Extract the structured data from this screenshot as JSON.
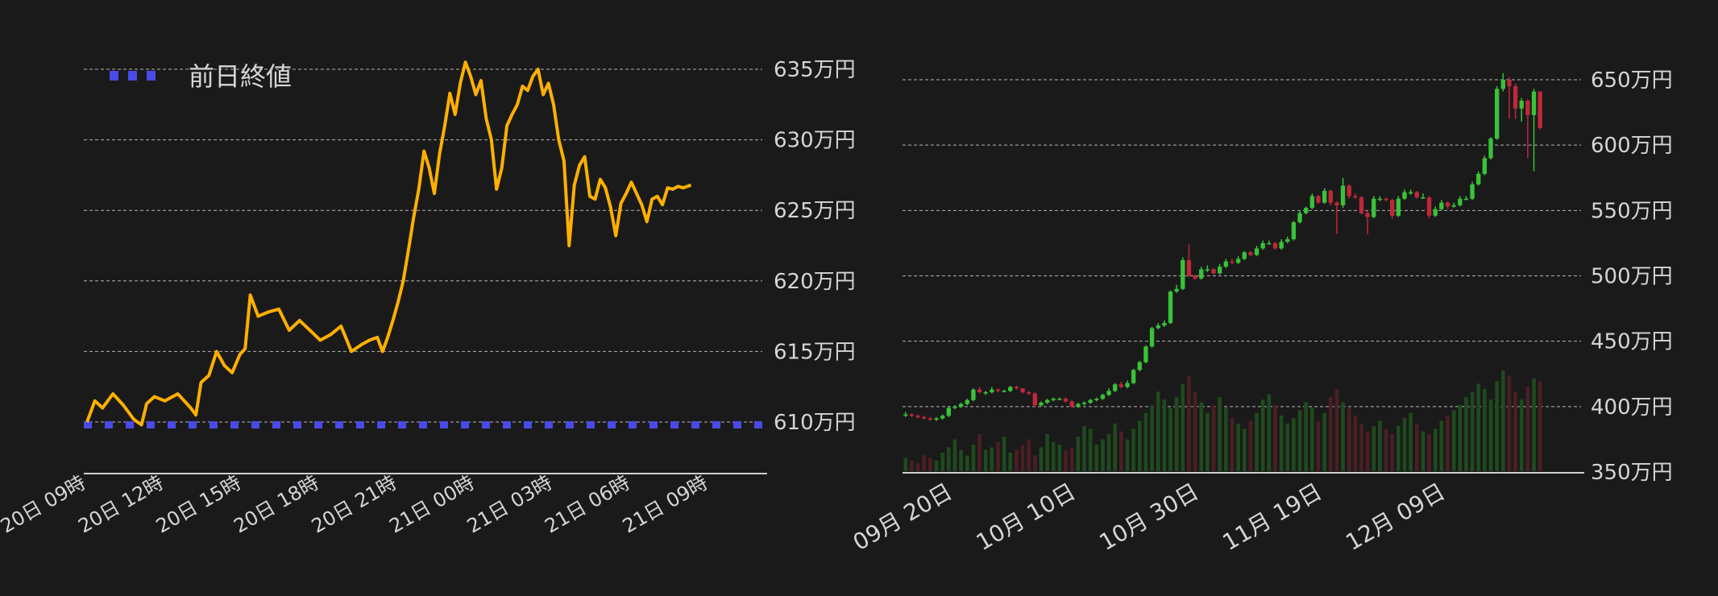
{
  "colors": {
    "background": "#1a1a1a",
    "intraday_line": "#ffb000",
    "prev_close": "#4a4ae6",
    "up": "#39c239",
    "down": "#c0283a",
    "volume_up": "#1f4a1f",
    "volume_down": "#4a1f24"
  },
  "chart_data": [
    {
      "type": "line",
      "legend": {
        "label": "前日終値",
        "placement": "top-left"
      },
      "yaxis": {
        "position": "right",
        "ylim": [
          6055000,
          6360000
        ],
        "ticks": [
          6100000,
          6150000,
          6200000,
          6250000,
          6300000,
          6350000
        ],
        "tick_labels": [
          "610万円",
          "615万円",
          "620万円",
          "625万円",
          "630万円",
          "635万円"
        ]
      },
      "xaxis": {
        "xlim": [
          0,
          26
        ],
        "ticks": [
          0,
          3,
          6,
          9,
          12,
          15,
          18,
          21,
          24
        ],
        "tick_labels": [
          "20日 09時",
          "20日 12時",
          "20日 15時",
          "20日 18時",
          "20日 21時",
          "21日 00時",
          "21日 03時",
          "21日 06時",
          "21日 09時"
        ]
      },
      "grid": true,
      "prev_close": 6098000,
      "series": [
        {
          "x": [
            0,
            0.3,
            0.6,
            1,
            1.4,
            1.8,
            2.1,
            2.3,
            2.6,
            3,
            3.5,
            4,
            4.2,
            4.4,
            4.7,
            5,
            5.3,
            5.6,
            5.9,
            6.1,
            6.3,
            6.6,
            7,
            7.4,
            7.8,
            8.2,
            8.6,
            9,
            9.4,
            9.8,
            10.2,
            10.6,
            10.9,
            11.2,
            11.4,
            11.6,
            11.8,
            12,
            12.2,
            12.4,
            12.6,
            12.8,
            13,
            13.2,
            13.4,
            13.6,
            13.8,
            14,
            14.2,
            14.4,
            14.6,
            14.8,
            15,
            15.2,
            15.4,
            15.6,
            15.8,
            16,
            16.2,
            16.4,
            16.6,
            16.8,
            17,
            17.2,
            17.4,
            17.6,
            17.8,
            18,
            18.2,
            18.4,
            18.6,
            18.8,
            19,
            19.2,
            19.4,
            19.6,
            19.8,
            20,
            20.2,
            20.4,
            20.6,
            20.8,
            21,
            21.2,
            21.4,
            21.6,
            21.8,
            22,
            22.2,
            22.4,
            22.6,
            22.8,
            23,
            23.3
          ],
          "y": [
            6100000,
            6115000,
            6110000,
            6120000,
            6112000,
            6102000,
            6098000,
            6113000,
            6118000,
            6115000,
            6120000,
            6110000,
            6105000,
            6128000,
            6133000,
            6150000,
            6140000,
            6135000,
            6148000,
            6152000,
            6190000,
            6175000,
            6178000,
            6180000,
            6165000,
            6172000,
            6165000,
            6158000,
            6162000,
            6168000,
            6150000,
            6155000,
            6158000,
            6160000,
            6150000,
            6160000,
            6172000,
            6185000,
            6200000,
            6222000,
            6245000,
            6265000,
            6292000,
            6280000,
            6262000,
            6290000,
            6310000,
            6333000,
            6318000,
            6340000,
            6355000,
            6345000,
            6332000,
            6342000,
            6315000,
            6300000,
            6265000,
            6280000,
            6310000,
            6318000,
            6325000,
            6338000,
            6335000,
            6345000,
            6350000,
            6332000,
            6340000,
            6325000,
            6300000,
            6285000,
            6225000,
            6268000,
            6282000,
            6288000,
            6260000,
            6258000,
            6272000,
            6266000,
            6252000,
            6232000,
            6255000,
            6262000,
            6270000,
            6262000,
            6254000,
            6242000,
            6258000,
            6260000,
            6254000,
            6266000,
            6265000,
            6267000,
            6266000,
            6268000
          ]
        }
      ]
    },
    {
      "type": "candlestick",
      "yaxis": {
        "position": "right",
        "ylim": [
          3500000,
          6700000
        ],
        "ticks": [
          3500000,
          4000000,
          4500000,
          5000000,
          5500000,
          6000000,
          6500000
        ],
        "tick_labels": [
          "350万円",
          "400万円",
          "450万円",
          "500万円",
          "550万円",
          "600万円",
          "650万円"
        ]
      },
      "xaxis": {
        "xlim": [
          -0.5,
          104.5
        ],
        "ticks": [
          0,
          20,
          40,
          60,
          80
        ],
        "tick_labels": [
          "09月 20日",
          "10月 10日",
          "10月 30日",
          "11月 19日",
          "12月 09日"
        ]
      },
      "grid": true,
      "candles": {
        "open": [
          3940000,
          3940000,
          3930000,
          3920000,
          3910000,
          3900000,
          3910000,
          3930000,
          3990000,
          4000000,
          4020000,
          4050000,
          4130000,
          4110000,
          4110000,
          4130000,
          4120000,
          4120000,
          4150000,
          4140000,
          4110000,
          4100000,
          4010000,
          4030000,
          4050000,
          4060000,
          4060000,
          4040000,
          4000000,
          4020000,
          4030000,
          4050000,
          4060000,
          4090000,
          4120000,
          4170000,
          4150000,
          4180000,
          4280000,
          4340000,
          4460000,
          4600000,
          4620000,
          4640000,
          4880000,
          4900000,
          5120000,
          5000000,
          4980000,
          5050000,
          5050000,
          5020000,
          5070000,
          5110000,
          5100000,
          5130000,
          5180000,
          5160000,
          5210000,
          5250000,
          5250000,
          5210000,
          5260000,
          5280000,
          5410000,
          5480000,
          5520000,
          5610000,
          5560000,
          5650000,
          5560000,
          5540000,
          5690000,
          5610000,
          5600000,
          5480000,
          5450000,
          5590000,
          5590000,
          5580000,
          5460000,
          5590000,
          5640000,
          5640000,
          5600000,
          5600000,
          5460000,
          5510000,
          5560000,
          5530000,
          5540000,
          5590000,
          5590000,
          5700000,
          5780000,
          5900000,
          6050000,
          6430000,
          6500000,
          6450000,
          6280000,
          6340000,
          6230000,
          6410000
        ],
        "close": [
          3940000,
          3930000,
          3920000,
          3910000,
          3900000,
          3910000,
          3930000,
          3990000,
          4000000,
          4020000,
          4050000,
          4130000,
          4110000,
          4110000,
          4130000,
          4120000,
          4120000,
          4150000,
          4140000,
          4110000,
          4100000,
          4010000,
          4030000,
          4050000,
          4060000,
          4060000,
          4040000,
          4000000,
          4020000,
          4030000,
          4050000,
          4060000,
          4090000,
          4120000,
          4170000,
          4150000,
          4180000,
          4280000,
          4340000,
          4460000,
          4600000,
          4620000,
          4640000,
          4880000,
          4900000,
          5120000,
          5000000,
          4980000,
          5050000,
          5050000,
          5020000,
          5070000,
          5110000,
          5100000,
          5130000,
          5180000,
          5160000,
          5210000,
          5250000,
          5250000,
          5210000,
          5260000,
          5280000,
          5410000,
          5480000,
          5520000,
          5610000,
          5560000,
          5650000,
          5560000,
          5540000,
          5690000,
          5610000,
          5600000,
          5480000,
          5450000,
          5590000,
          5590000,
          5580000,
          5460000,
          5590000,
          5640000,
          5640000,
          5600000,
          5600000,
          5460000,
          5510000,
          5560000,
          5530000,
          5540000,
          5590000,
          5590000,
          5700000,
          5780000,
          5900000,
          6050000,
          6430000,
          6500000,
          6450000,
          6280000,
          6340000,
          6230000,
          6410000,
          6130000
        ],
        "high": [
          3960000,
          3950000,
          3940000,
          3930000,
          3920000,
          3920000,
          3940000,
          4000000,
          4010000,
          4030000,
          4060000,
          4140000,
          4150000,
          4120000,
          4150000,
          4140000,
          4130000,
          4160000,
          4160000,
          4140000,
          4120000,
          4110000,
          4040000,
          4060000,
          4070000,
          4070000,
          4070000,
          4050000,
          4030000,
          4040000,
          4060000,
          4070000,
          4100000,
          4140000,
          4180000,
          4190000,
          4200000,
          4290000,
          4350000,
          4470000,
          4610000,
          4640000,
          4660000,
          4890000,
          4930000,
          5140000,
          5240000,
          5010000,
          5070000,
          5080000,
          5060000,
          5090000,
          5130000,
          5130000,
          5150000,
          5190000,
          5190000,
          5230000,
          5270000,
          5270000,
          5260000,
          5280000,
          5300000,
          5420000,
          5500000,
          5530000,
          5630000,
          5620000,
          5670000,
          5660000,
          5570000,
          5750000,
          5700000,
          5630000,
          5610000,
          5500000,
          5610000,
          5610000,
          5600000,
          5590000,
          5610000,
          5660000,
          5660000,
          5650000,
          5630000,
          5610000,
          5530000,
          5580000,
          5570000,
          5560000,
          5610000,
          5610000,
          5720000,
          5800000,
          5920000,
          6060000,
          6450000,
          6550000,
          6520000,
          6470000,
          6360000,
          6350000,
          6430000,
          6410000
        ],
        "low": [
          3920000,
          3920000,
          3910000,
          3900000,
          3890000,
          3890000,
          3900000,
          3920000,
          3980000,
          3990000,
          4010000,
          4040000,
          4100000,
          4090000,
          4100000,
          4110000,
          4110000,
          4110000,
          4130000,
          4100000,
          4090000,
          4000000,
          4000000,
          4020000,
          4040000,
          4050000,
          4030000,
          3990000,
          3990000,
          4010000,
          4020000,
          4040000,
          4050000,
          4080000,
          4110000,
          4140000,
          4140000,
          4170000,
          4270000,
          4330000,
          4450000,
          4590000,
          4610000,
          4630000,
          4870000,
          4890000,
          4990000,
          4970000,
          4970000,
          5030000,
          5010000,
          5010000,
          5060000,
          5090000,
          5090000,
          5120000,
          5150000,
          5150000,
          5200000,
          5240000,
          5200000,
          5200000,
          5250000,
          5270000,
          5400000,
          5470000,
          5510000,
          5550000,
          5550000,
          5540000,
          5320000,
          5520000,
          5590000,
          5590000,
          5470000,
          5320000,
          5440000,
          5570000,
          5570000,
          5440000,
          5450000,
          5580000,
          5620000,
          5590000,
          5590000,
          5440000,
          5450000,
          5500000,
          5510000,
          5520000,
          5530000,
          5580000,
          5580000,
          5690000,
          5770000,
          5890000,
          6040000,
          6410000,
          6200000,
          6200000,
          6180000,
          5900000,
          5800000,
          6120000
        ]
      },
      "volume": [
        5,
        4,
        3,
        6,
        5,
        4,
        7,
        9,
        12,
        8,
        6,
        10,
        14,
        8,
        9,
        11,
        13,
        7,
        8,
        10,
        12,
        6,
        9,
        14,
        11,
        10,
        8,
        9,
        13,
        17,
        16,
        10,
        12,
        14,
        18,
        15,
        12,
        16,
        19,
        22,
        25,
        30,
        27,
        24,
        28,
        33,
        36,
        30,
        26,
        22,
        25,
        28,
        24,
        20,
        18,
        16,
        19,
        22,
        27,
        29,
        25,
        21,
        18,
        20,
        23,
        26,
        24,
        19,
        22,
        28,
        31,
        26,
        24,
        21,
        18,
        15,
        17,
        19,
        16,
        14,
        17,
        20,
        22,
        18,
        15,
        14,
        16,
        19,
        21,
        23,
        25,
        28,
        30,
        33,
        31,
        27,
        34,
        38,
        36,
        30,
        27,
        32,
        35,
        34
      ]
    }
  ]
}
